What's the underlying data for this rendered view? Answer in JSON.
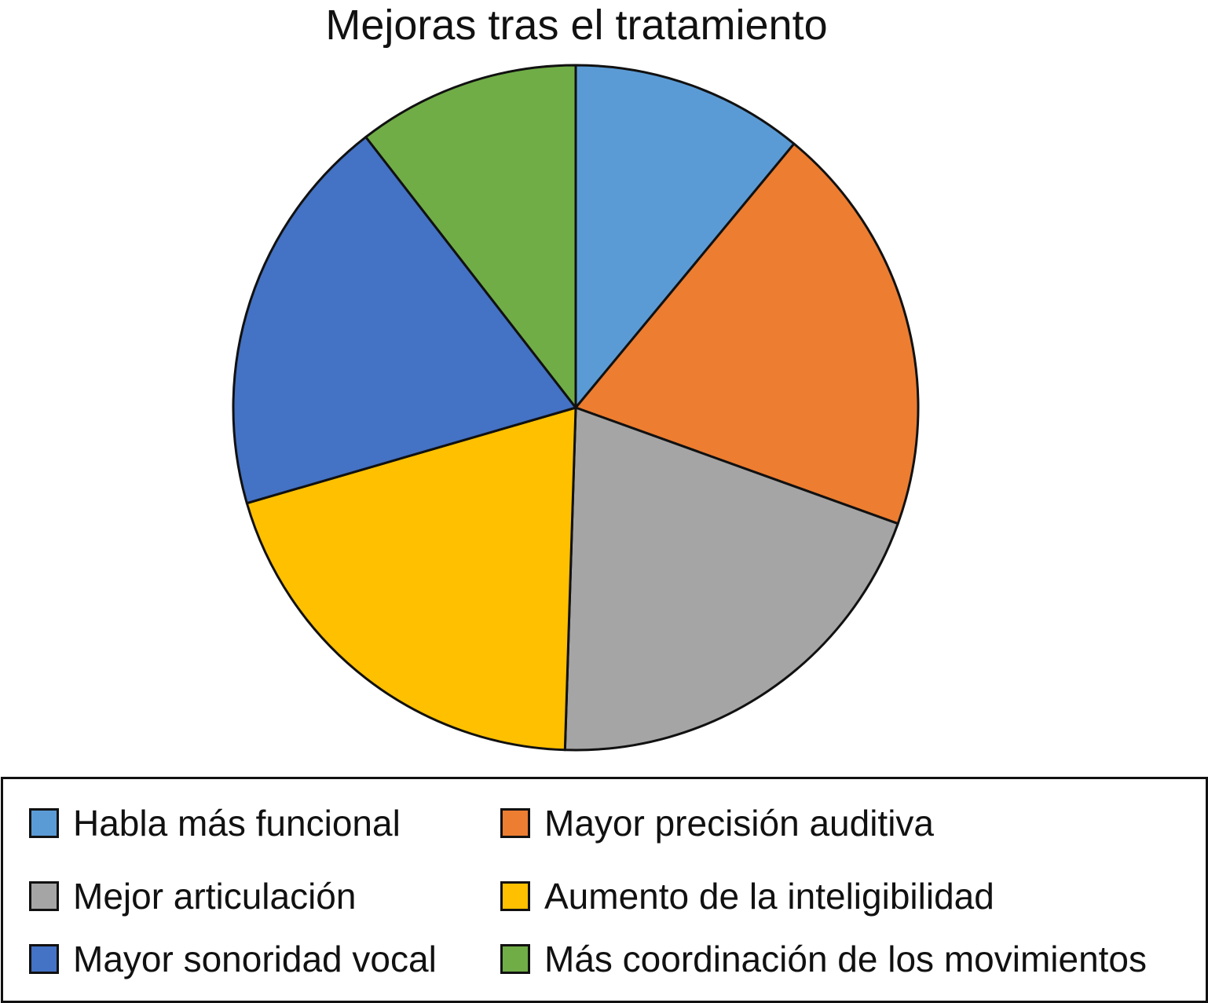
{
  "chart_data": {
    "type": "pie",
    "title": "Mejoras tras el tratamiento",
    "legend_position": "bottom",
    "slices": [
      {
        "label": "Habla más funcional",
        "value": 11,
        "color": "#5b9bd5"
      },
      {
        "label": "Mayor precisión auditiva",
        "value": 19.5,
        "color": "#ed7d31"
      },
      {
        "label": "Mejor articulación",
        "value": 20,
        "color": "#a5a5a5"
      },
      {
        "label": "Aumento de la inteligibilidad",
        "value": 20,
        "color": "#ffc000"
      },
      {
        "label": "Mayor sonoridad vocal",
        "value": 19,
        "color": "#4472c4"
      },
      {
        "label": "Más coordinación de los movimientos",
        "value": 10.5,
        "color": "#70ad47"
      }
    ]
  }
}
